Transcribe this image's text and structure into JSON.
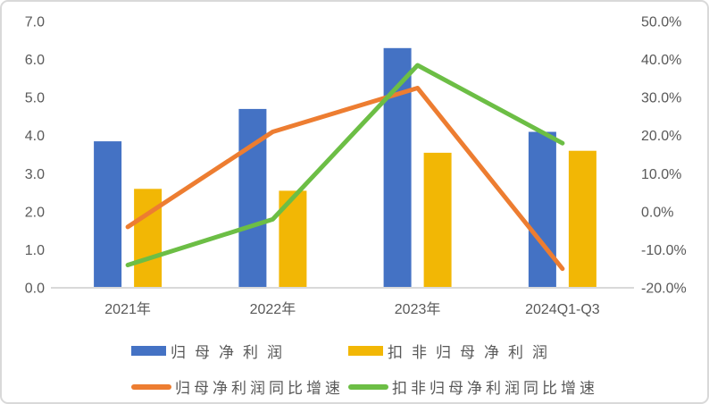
{
  "chart_data": {
    "type": "combo-bar-line",
    "title": "",
    "categories": [
      "2021年",
      "2022年",
      "2023年",
      "2024Q1-Q3"
    ],
    "bar_series": [
      {
        "key": "net-profit",
        "name": "归母净利润",
        "color": "#4472C4",
        "axis": "left",
        "values": [
          3.85,
          4.7,
          6.3,
          4.1
        ]
      },
      {
        "key": "net-profit-deducted",
        "name": "扣非归母净利润",
        "color": "#F2B705",
        "axis": "left",
        "values": [
          2.6,
          2.55,
          3.55,
          3.6
        ]
      }
    ],
    "line_series": [
      {
        "key": "net-profit-yoy",
        "name": "归母净利润同比增速",
        "color": "#ED7D31",
        "axis": "right",
        "values_pct": [
          -4.0,
          21.0,
          32.5,
          -15.0
        ]
      },
      {
        "key": "net-profit-deducted-yoy",
        "name": "扣非归母净利润同比增速",
        "color": "#6CBE45",
        "axis": "right",
        "values_pct": [
          -14.0,
          -2.0,
          38.5,
          18.0
        ]
      }
    ],
    "left_axis": {
      "min": 0,
      "max": 7,
      "step": 1,
      "tick_labels": [
        "0.0",
        "1.0",
        "2.0",
        "3.0",
        "4.0",
        "5.0",
        "6.0",
        "7.0"
      ]
    },
    "right_axis": {
      "min": -20,
      "max": 50,
      "step": 10,
      "tick_labels": [
        "-20.0%",
        "-10.0%",
        "0.0%",
        "10.0%",
        "20.0%",
        "30.0%",
        "40.0%",
        "50.0%"
      ]
    },
    "grid": false,
    "legend_position": "bottom"
  },
  "colors": {
    "axis_line": "#D9D9D9",
    "text": "#595959",
    "border": "#D9D9D9",
    "background": "#FFFFFF"
  }
}
